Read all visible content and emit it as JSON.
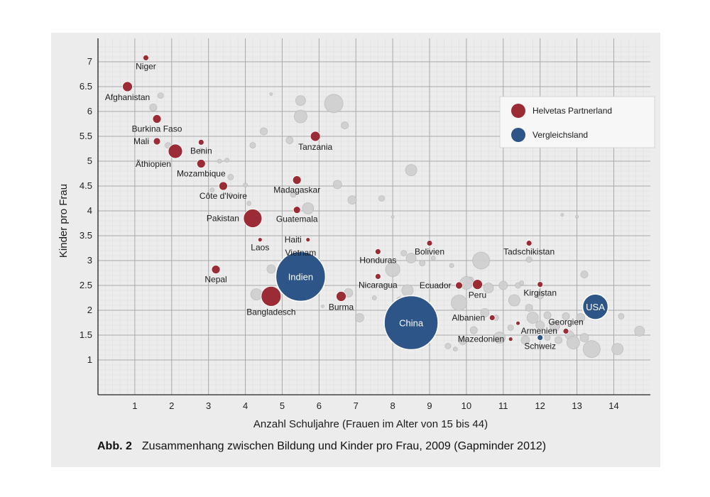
{
  "caption": {
    "figure_number": "Abb. 2",
    "text": "Zusammenhang zwischen Bildung und Kinder pro Frau, 2009 (Gapminder 2012)"
  },
  "colors": {
    "partner": "#9b2b34",
    "comparison": "#2e5587",
    "other": "#cfcfcf",
    "background": "#ececec",
    "grid": "#a9a9a9"
  },
  "chart_data": {
    "type": "scatter",
    "xlabel": "Anzahl Schuljahre (Frauen im Alter von 15 bis 44)",
    "ylabel": "Kinder pro Frau",
    "xlim": [
      0,
      14.8
    ],
    "ylim": [
      0.3,
      7.3
    ],
    "x_ticks": [
      "1",
      "2",
      "3",
      "4",
      "5",
      "6",
      "7",
      "8",
      "9",
      "10",
      "11",
      "12",
      "13",
      "14"
    ],
    "y_ticks": [
      {
        "value": 1,
        "label": "1"
      },
      {
        "value": 1.5,
        "label": "1.5"
      },
      {
        "value": 2,
        "label": "2"
      },
      {
        "value": 2.5,
        "label": "2.5"
      },
      {
        "value": 3,
        "label": "3"
      },
      {
        "value": 3.5,
        "label": "3.5"
      },
      {
        "value": 4,
        "label": "4"
      },
      {
        "value": 4.5,
        "label": "4.5"
      },
      {
        "value": 5,
        "label": "5"
      },
      {
        "value": 5.5,
        "label": "5.5"
      },
      {
        "value": 6,
        "label": "6"
      },
      {
        "value": 6.5,
        "label": "6.5"
      },
      {
        "value": 7,
        "label": "7"
      }
    ],
    "grid": true,
    "legend_position": "top-right",
    "legend": [
      {
        "name": "Helvetas Partnerland",
        "group": "partner"
      },
      {
        "name": "Vergleichsland",
        "group": "comparison"
      }
    ],
    "series": [
      {
        "name": "Helvetas Partnerland",
        "group": "partner",
        "points": [
          {
            "label": "Niger",
            "x": 1.3,
            "y": 7.08,
            "size": 4,
            "label_pos": "below"
          },
          {
            "label": "Afghanistan",
            "x": 0.8,
            "y": 6.5,
            "size": 7,
            "label_pos": "below"
          },
          {
            "label": "Burkina Faso",
            "x": 1.6,
            "y": 5.85,
            "size": 6,
            "label_pos": "below"
          },
          {
            "label": "Mali",
            "x": 1.6,
            "y": 5.4,
            "size": 5,
            "label_pos": "left"
          },
          {
            "label": "Äthiopien",
            "x": 2.1,
            "y": 5.2,
            "size": 10,
            "label_pos": "belowleft"
          },
          {
            "label": "Benin",
            "x": 2.8,
            "y": 5.38,
            "size": 4,
            "label_pos": "below"
          },
          {
            "label": "Mozambique",
            "x": 2.8,
            "y": 4.95,
            "size": 6,
            "label_pos": "below"
          },
          {
            "label": "Côte d'Ivoire",
            "x": 3.4,
            "y": 4.5,
            "size": 6,
            "label_pos": "below"
          },
          {
            "label": "Tanzania",
            "x": 5.9,
            "y": 5.5,
            "size": 7,
            "label_pos": "below"
          },
          {
            "label": "Madagaskar",
            "x": 5.4,
            "y": 4.62,
            "size": 6,
            "label_pos": "below"
          },
          {
            "label": "Pakistan",
            "x": 4.2,
            "y": 3.85,
            "size": 13,
            "label_pos": "left"
          },
          {
            "label": "Guatemala",
            "x": 5.4,
            "y": 4.02,
            "size": 5,
            "label_pos": "below"
          },
          {
            "label": "Haiti",
            "x": 5.7,
            "y": 3.42,
            "size": 3,
            "label_pos": "left"
          },
          {
            "label": "Laos",
            "x": 4.4,
            "y": 3.42,
            "size": 3,
            "label_pos": "below"
          },
          {
            "label": "Vietnam",
            "x": 5.5,
            "y": 2.93,
            "size": 7,
            "label_pos": "above"
          },
          {
            "label": "Nepal",
            "x": 3.2,
            "y": 2.82,
            "size": 6,
            "label_pos": "below"
          },
          {
            "label": "Bangladesch",
            "x": 4.7,
            "y": 2.28,
            "size": 14,
            "label_pos": "below"
          },
          {
            "label": "Burma",
            "x": 6.6,
            "y": 2.28,
            "size": 7,
            "label_pos": "below"
          },
          {
            "label": "Honduras",
            "x": 7.6,
            "y": 3.18,
            "size": 4,
            "label_pos": "below"
          },
          {
            "label": "Nicaragua",
            "x": 7.6,
            "y": 2.68,
            "size": 4,
            "label_pos": "below"
          },
          {
            "label": "Bolivien",
            "x": 9.0,
            "y": 3.35,
            "size": 4,
            "label_pos": "below"
          },
          {
            "label": "Ecuador",
            "x": 9.8,
            "y": 2.5,
            "size": 5,
            "label_pos": "left"
          },
          {
            "label": "Peru",
            "x": 10.3,
            "y": 2.52,
            "size": 7,
            "label_pos": "below"
          },
          {
            "label": "Tadschikistan",
            "x": 11.7,
            "y": 3.35,
            "size": 4,
            "label_pos": "below"
          },
          {
            "label": "Kirgistan",
            "x": 12.0,
            "y": 2.52,
            "size": 4,
            "label_pos": "below"
          },
          {
            "label": "Albanien",
            "x": 10.7,
            "y": 1.85,
            "size": 4,
            "label_pos": "left"
          },
          {
            "label": "Armenien",
            "x": 11.4,
            "y": 1.74,
            "size": 3,
            "label_pos": "belowright"
          },
          {
            "label": "Mazedonien",
            "x": 11.2,
            "y": 1.42,
            "size": 3,
            "label_pos": "left"
          },
          {
            "label": "Georgien",
            "x": 12.7,
            "y": 1.58,
            "size": 4,
            "label_pos": "above"
          }
        ]
      },
      {
        "name": "Vergleichsland",
        "group": "comparison",
        "points": [
          {
            "label": "Indien",
            "x": 5.5,
            "y": 2.68,
            "size": 35,
            "label_pos": "center"
          },
          {
            "label": "China",
            "x": 8.5,
            "y": 1.75,
            "size": 38,
            "label_pos": "center"
          },
          {
            "label": "USA",
            "x": 13.5,
            "y": 2.07,
            "size": 18,
            "label_pos": "center"
          },
          {
            "label": "Schweiz",
            "x": 12.0,
            "y": 1.45,
            "size": 4,
            "label_pos": "below"
          }
        ]
      },
      {
        "group": "other",
        "points": [
          {
            "x": 1.7,
            "y": 6.32,
            "size": 4
          },
          {
            "x": 1.5,
            "y": 6.08,
            "size": 5
          },
          {
            "x": 1.9,
            "y": 5.32,
            "size": 4
          },
          {
            "x": 2.8,
            "y": 5.22,
            "size": 3
          },
          {
            "x": 3.3,
            "y": 5.0,
            "size": 3
          },
          {
            "x": 3.5,
            "y": 5.02,
            "size": 3
          },
          {
            "x": 3.6,
            "y": 4.68,
            "size": 4
          },
          {
            "x": 3.1,
            "y": 4.42,
            "size": 3
          },
          {
            "x": 4.0,
            "y": 4.52,
            "size": 3
          },
          {
            "x": 4.1,
            "y": 4.15,
            "size": 3
          },
          {
            "x": 3.6,
            "y": 4.32,
            "size": 3
          },
          {
            "x": 4.5,
            "y": 5.6,
            "size": 5
          },
          {
            "x": 4.2,
            "y": 5.32,
            "size": 4
          },
          {
            "x": 4.7,
            "y": 6.35,
            "size": 2
          },
          {
            "x": 5.2,
            "y": 5.42,
            "size": 5
          },
          {
            "x": 5.5,
            "y": 6.22,
            "size": 7
          },
          {
            "x": 5.5,
            "y": 5.9,
            "size": 9
          },
          {
            "x": 6.4,
            "y": 6.16,
            "size": 13
          },
          {
            "x": 6.7,
            "y": 5.72,
            "size": 5
          },
          {
            "x": 6.5,
            "y": 4.53,
            "size": 6
          },
          {
            "x": 5.3,
            "y": 4.33,
            "size": 4
          },
          {
            "x": 5.7,
            "y": 4.05,
            "size": 8
          },
          {
            "x": 6.9,
            "y": 4.22,
            "size": 6
          },
          {
            "x": 7.7,
            "y": 4.25,
            "size": 4
          },
          {
            "x": 8.5,
            "y": 4.82,
            "size": 8
          },
          {
            "x": 8.0,
            "y": 3.88,
            "size": 2
          },
          {
            "x": 4.7,
            "y": 2.83,
            "size": 6
          },
          {
            "x": 4.3,
            "y": 2.32,
            "size": 8
          },
          {
            "x": 5.9,
            "y": 2.5,
            "size": 5
          },
          {
            "x": 6.1,
            "y": 2.08,
            "size": 2
          },
          {
            "x": 6.8,
            "y": 2.35,
            "size": 6
          },
          {
            "x": 7.1,
            "y": 1.85,
            "size": 6
          },
          {
            "x": 7.5,
            "y": 2.25,
            "size": 3
          },
          {
            "x": 8.0,
            "y": 2.82,
            "size": 10
          },
          {
            "x": 8.3,
            "y": 3.15,
            "size": 4
          },
          {
            "x": 8.5,
            "y": 3.05,
            "size": 7
          },
          {
            "x": 8.8,
            "y": 2.95,
            "size": 4
          },
          {
            "x": 9.1,
            "y": 3.05,
            "size": 3
          },
          {
            "x": 8.4,
            "y": 2.4,
            "size": 8
          },
          {
            "x": 8.2,
            "y": 2.2,
            "size": 5
          },
          {
            "x": 9.6,
            "y": 2.9,
            "size": 3
          },
          {
            "x": 10.1,
            "y": 2.6,
            "size": 5
          },
          {
            "x": 10.4,
            "y": 3.0,
            "size": 12
          },
          {
            "x": 10.0,
            "y": 2.55,
            "size": 9
          },
          {
            "x": 10.6,
            "y": 2.45,
            "size": 7
          },
          {
            "x": 9.8,
            "y": 2.15,
            "size": 11
          },
          {
            "x": 10.5,
            "y": 1.95,
            "size": 6
          },
          {
            "x": 10.8,
            "y": 1.85,
            "size": 4
          },
          {
            "x": 10.2,
            "y": 1.6,
            "size": 5
          },
          {
            "x": 9.9,
            "y": 1.38,
            "size": 5
          },
          {
            "x": 9.5,
            "y": 1.28,
            "size": 4
          },
          {
            "x": 9.7,
            "y": 1.22,
            "size": 3
          },
          {
            "x": 10.9,
            "y": 1.45,
            "size": 8
          },
          {
            "x": 11.2,
            "y": 1.65,
            "size": 4
          },
          {
            "x": 11.0,
            "y": 2.5,
            "size": 6
          },
          {
            "x": 11.3,
            "y": 2.2,
            "size": 8
          },
          {
            "x": 11.4,
            "y": 2.5,
            "size": 4
          },
          {
            "x": 11.7,
            "y": 2.05,
            "size": 5
          },
          {
            "x": 11.8,
            "y": 1.85,
            "size": 8
          },
          {
            "x": 12.0,
            "y": 1.7,
            "size": 6
          },
          {
            "x": 12.2,
            "y": 1.9,
            "size": 5
          },
          {
            "x": 12.4,
            "y": 1.68,
            "size": 7
          },
          {
            "x": 11.6,
            "y": 1.4,
            "size": 6
          },
          {
            "x": 12.5,
            "y": 1.4,
            "size": 5
          },
          {
            "x": 12.8,
            "y": 1.5,
            "size": 6
          },
          {
            "x": 12.9,
            "y": 1.35,
            "size": 9
          },
          {
            "x": 13.2,
            "y": 1.45,
            "size": 6
          },
          {
            "x": 13.4,
            "y": 1.22,
            "size": 12
          },
          {
            "x": 13.1,
            "y": 1.85,
            "size": 6
          },
          {
            "x": 12.7,
            "y": 1.88,
            "size": 5
          },
          {
            "x": 13.2,
            "y": 2.72,
            "size": 5
          },
          {
            "x": 13.0,
            "y": 3.88,
            "size": 2
          },
          {
            "x": 12.6,
            "y": 3.92,
            "size": 2
          },
          {
            "x": 12.0,
            "y": 2.3,
            "size": 5
          },
          {
            "x": 11.7,
            "y": 3.02,
            "size": 4
          },
          {
            "x": 11.5,
            "y": 2.55,
            "size": 3
          },
          {
            "x": 14.1,
            "y": 1.22,
            "size": 8
          },
          {
            "x": 14.7,
            "y": 1.58,
            "size": 7
          },
          {
            "x": 14.2,
            "y": 1.88,
            "size": 4
          },
          {
            "x": 12.2,
            "y": 1.45,
            "size": 4
          }
        ]
      }
    ]
  }
}
